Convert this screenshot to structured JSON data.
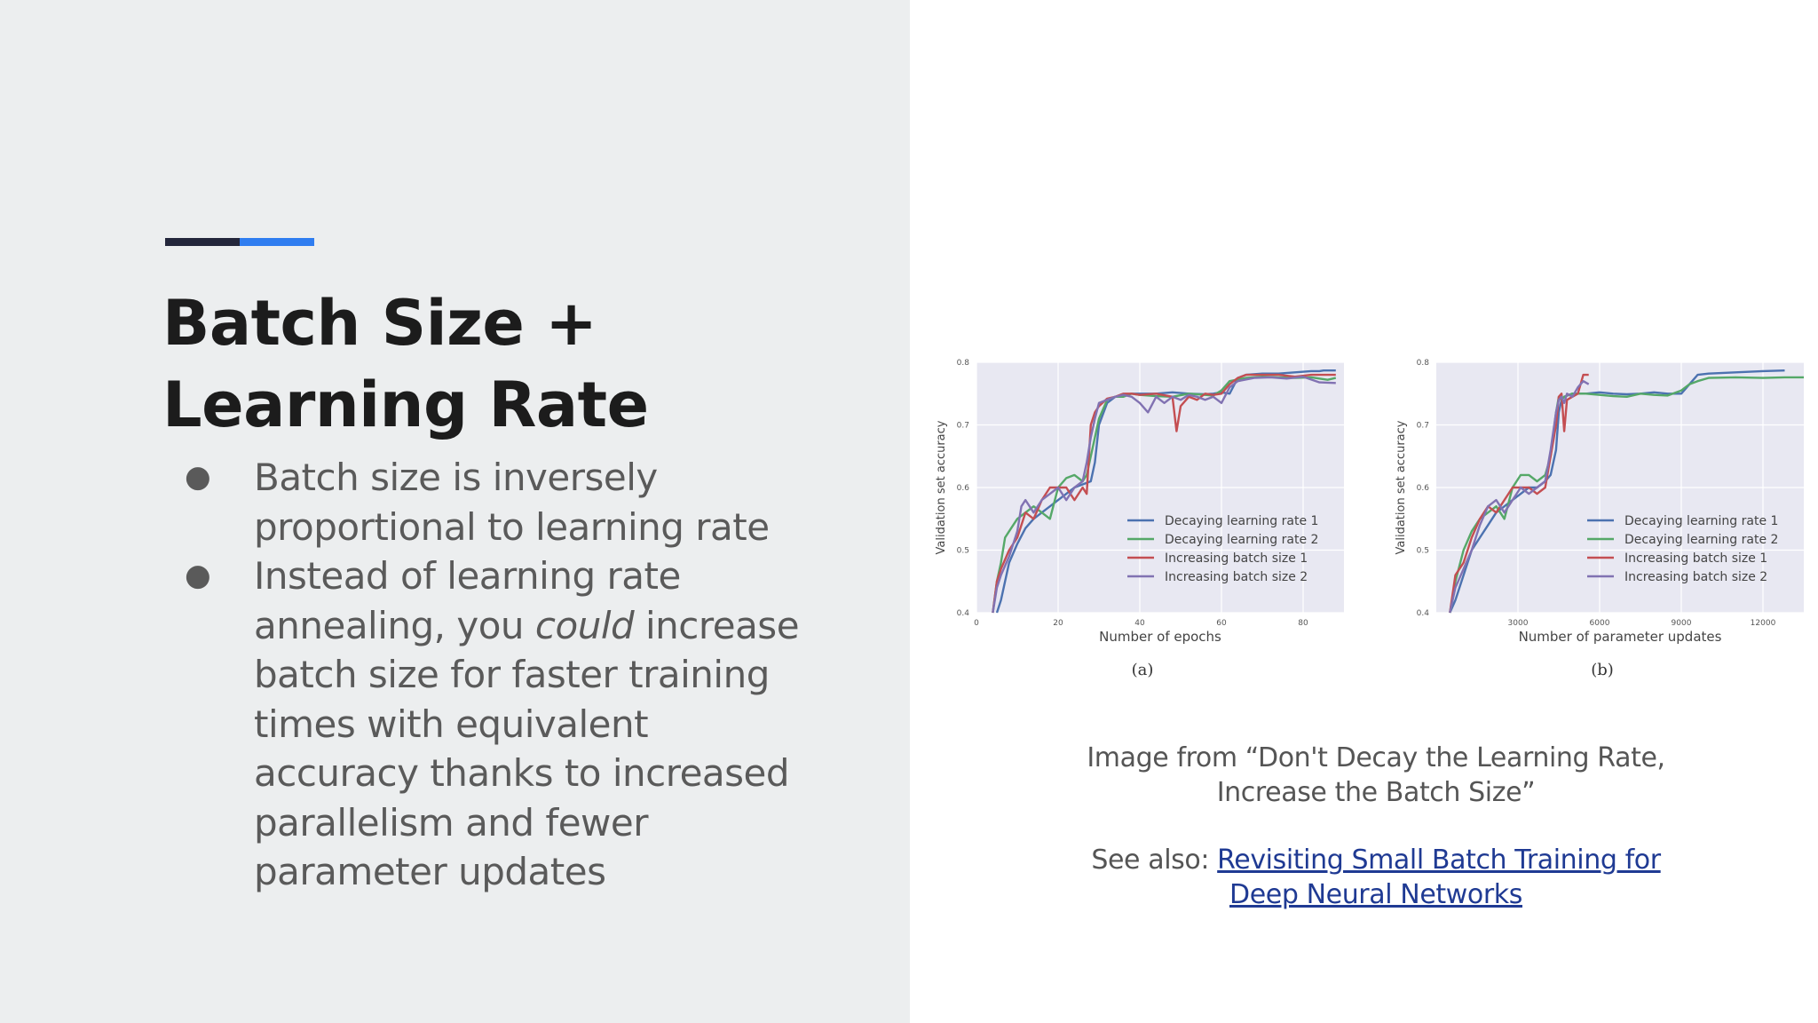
{
  "slide": {
    "accent_colors": [
      "#23263b",
      "#2f7df0"
    ],
    "title_line1": "Batch Size +",
    "title_line2": "Learning Rate",
    "bullet_glyph": "●",
    "bullets": [
      {
        "line1": "Batch size is inversely",
        "line2": "proportional to learning rate"
      },
      {
        "line1": "Instead of learning rate",
        "line2_before": "annealing, you ",
        "line2_italic": "could",
        "line2_after": " increase",
        "line3": "batch size for faster training",
        "line4": "times with equivalent",
        "line5": "accuracy thanks to increased",
        "line6": "parallelism and fewer",
        "line7": "parameter updates"
      }
    ],
    "caption_line1": "Image from “Don't Decay the Learning Rate,",
    "caption_line2": "Increase the Batch Size”",
    "see_also_label": "See also: ",
    "link_line1": "Revisiting Small Batch Training for",
    "link_line2": "Deep Neural Networks"
  },
  "chart_data": [
    {
      "type": "line",
      "panel_label": "(a)",
      "xlabel": "Number of epochs",
      "ylabel": "Validation set accuracy",
      "xlim": [
        0,
        90
      ],
      "ylim": [
        0.4,
        0.8
      ],
      "xticks": [
        0,
        20,
        40,
        60,
        80
      ],
      "yticks": [
        0.4,
        0.5,
        0.6,
        0.7,
        0.8
      ],
      "grid": true,
      "legend": "lower-right",
      "series": [
        {
          "name": "Decaying learning rate 1",
          "color": "#4c72b0",
          "x": [
            5,
            6,
            7,
            8,
            10,
            12,
            14,
            16,
            18,
            20,
            22,
            24,
            26,
            28,
            29,
            30,
            32,
            34,
            36,
            38,
            40,
            44,
            48,
            52,
            56,
            58,
            60,
            62,
            64,
            66,
            70,
            74,
            78,
            82,
            84,
            85,
            86,
            88
          ],
          "y": [
            0.4,
            0.42,
            0.45,
            0.48,
            0.51,
            0.535,
            0.55,
            0.56,
            0.57,
            0.58,
            0.59,
            0.6,
            0.605,
            0.61,
            0.64,
            0.7,
            0.735,
            0.745,
            0.748,
            0.75,
            0.75,
            0.75,
            0.752,
            0.75,
            0.749,
            0.75,
            0.752,
            0.75,
            0.775,
            0.78,
            0.782,
            0.782,
            0.784,
            0.786,
            0.786,
            0.787,
            0.787,
            0.787
          ]
        },
        {
          "name": "Decaying learning rate 2",
          "color": "#55a868",
          "x": [
            4,
            5,
            6,
            7,
            8,
            10,
            12,
            14,
            16,
            18,
            20,
            22,
            24,
            26,
            27,
            28,
            30,
            32,
            34,
            36,
            38,
            40,
            44,
            48,
            52,
            56,
            58,
            60,
            62,
            66,
            70,
            74,
            78,
            82,
            84,
            86,
            88
          ],
          "y": [
            0.4,
            0.45,
            0.48,
            0.52,
            0.53,
            0.55,
            0.56,
            0.57,
            0.56,
            0.55,
            0.6,
            0.615,
            0.62,
            0.61,
            0.62,
            0.65,
            0.71,
            0.74,
            0.745,
            0.745,
            0.75,
            0.748,
            0.746,
            0.745,
            0.75,
            0.748,
            0.747,
            0.755,
            0.77,
            0.775,
            0.777,
            0.776,
            0.775,
            0.776,
            0.774,
            0.772,
            0.775
          ]
        },
        {
          "name": "Increasing batch size 1",
          "color": "#c44e52",
          "x": [
            4,
            5,
            6,
            8,
            10,
            12,
            14,
            16,
            18,
            20,
            22,
            24,
            26,
            27,
            28,
            29,
            30,
            32,
            34,
            36,
            38,
            40,
            44,
            48,
            49,
            50,
            52,
            54,
            56,
            58,
            60,
            62,
            64,
            66,
            70,
            74,
            78,
            82,
            86,
            88
          ],
          "y": [
            0.4,
            0.45,
            0.47,
            0.5,
            0.52,
            0.56,
            0.55,
            0.58,
            0.6,
            0.6,
            0.6,
            0.58,
            0.6,
            0.59,
            0.7,
            0.72,
            0.73,
            0.742,
            0.745,
            0.75,
            0.75,
            0.748,
            0.75,
            0.745,
            0.69,
            0.73,
            0.745,
            0.74,
            0.75,
            0.748,
            0.75,
            0.765,
            0.775,
            0.78,
            0.78,
            0.78,
            0.777,
            0.78,
            0.78,
            0.78
          ]
        },
        {
          "name": "Increasing batch size 2",
          "color": "#8172b2",
          "x": [
            4,
            5,
            6,
            8,
            10,
            11,
            12,
            14,
            16,
            18,
            20,
            22,
            24,
            26,
            27,
            28,
            29,
            30,
            32,
            34,
            36,
            38,
            40,
            42,
            44,
            46,
            48,
            50,
            52,
            54,
            56,
            58,
            60,
            62,
            64,
            68,
            72,
            76,
            80,
            84,
            88
          ],
          "y": [
            0.4,
            0.44,
            0.46,
            0.49,
            0.53,
            0.57,
            0.58,
            0.56,
            0.58,
            0.59,
            0.6,
            0.58,
            0.6,
            0.61,
            0.64,
            0.68,
            0.71,
            0.735,
            0.74,
            0.745,
            0.748,
            0.745,
            0.735,
            0.72,
            0.745,
            0.735,
            0.745,
            0.74,
            0.748,
            0.745,
            0.74,
            0.745,
            0.735,
            0.76,
            0.77,
            0.775,
            0.776,
            0.774,
            0.777,
            0.768,
            0.767
          ]
        }
      ]
    },
    {
      "type": "line",
      "panel_label": "(b)",
      "xlabel": "Number of parameter updates",
      "ylabel": "Validation set accuracy",
      "xlim": [
        0,
        13500
      ],
      "ylim": [
        0.4,
        0.8
      ],
      "xticks": [
        3000,
        6000,
        9000,
        12000
      ],
      "yticks": [
        0.4,
        0.5,
        0.6,
        0.7,
        0.8
      ],
      "grid": true,
      "legend": "lower-right",
      "series": [
        {
          "name": "Decaying learning rate 1",
          "color": "#4c72b0",
          "x": [
            500,
            700,
            1000,
            1300,
            1600,
            1900,
            2200,
            2500,
            2800,
            3100,
            3400,
            3700,
            4000,
            4200,
            4400,
            4500,
            4600,
            4700,
            5000,
            5500,
            6000,
            6500,
            7000,
            7500,
            8000,
            8500,
            9000,
            9300,
            9600,
            10000,
            11000,
            12000,
            12800
          ],
          "y": [
            0.4,
            0.42,
            0.46,
            0.5,
            0.52,
            0.54,
            0.56,
            0.57,
            0.58,
            0.59,
            0.6,
            0.6,
            0.61,
            0.62,
            0.66,
            0.72,
            0.74,
            0.745,
            0.75,
            0.75,
            0.752,
            0.75,
            0.749,
            0.75,
            0.752,
            0.75,
            0.75,
            0.765,
            0.78,
            0.782,
            0.784,
            0.786,
            0.787
          ]
        },
        {
          "name": "Decaying learning rate 2",
          "color": "#55a868",
          "x": [
            500,
            700,
            1000,
            1300,
            1600,
            1900,
            2200,
            2500,
            2800,
            3100,
            3400,
            3700,
            4000,
            4200,
            4400,
            4500,
            4600,
            4700,
            5000,
            5500,
            6000,
            6500,
            7000,
            7500,
            8000,
            8500,
            9000,
            9300,
            9600,
            10000,
            11000,
            12000,
            12800,
            13500
          ],
          "y": [
            0.4,
            0.45,
            0.5,
            0.53,
            0.55,
            0.56,
            0.57,
            0.55,
            0.6,
            0.62,
            0.62,
            0.61,
            0.62,
            0.65,
            0.72,
            0.745,
            0.74,
            0.745,
            0.75,
            0.75,
            0.748,
            0.746,
            0.745,
            0.75,
            0.748,
            0.747,
            0.755,
            0.765,
            0.77,
            0.775,
            0.776,
            0.775,
            0.776,
            0.776
          ]
        },
        {
          "name": "Increasing batch size 1",
          "color": "#c44e52",
          "x": [
            500,
            700,
            1000,
            1300,
            1600,
            1900,
            2200,
            2500,
            2800,
            3100,
            3400,
            3700,
            4000,
            4200,
            4400,
            4500,
            4600,
            4700,
            4800,
            5000,
            5200,
            5400,
            5600
          ],
          "y": [
            0.4,
            0.46,
            0.48,
            0.52,
            0.55,
            0.57,
            0.56,
            0.58,
            0.6,
            0.6,
            0.6,
            0.59,
            0.6,
            0.65,
            0.7,
            0.745,
            0.75,
            0.69,
            0.74,
            0.745,
            0.75,
            0.78,
            0.78
          ]
        },
        {
          "name": "Increasing batch size 2",
          "color": "#8172b2",
          "x": [
            500,
            700,
            1000,
            1300,
            1600,
            1900,
            2200,
            2500,
            2800,
            3100,
            3400,
            3700,
            4000,
            4200,
            4400,
            4500,
            4600,
            4700,
            4800,
            5000,
            5200,
            5400,
            5600
          ],
          "y": [
            0.4,
            0.44,
            0.47,
            0.5,
            0.54,
            0.57,
            0.58,
            0.56,
            0.58,
            0.6,
            0.59,
            0.6,
            0.61,
            0.66,
            0.72,
            0.74,
            0.745,
            0.735,
            0.75,
            0.745,
            0.76,
            0.77,
            0.765
          ]
        }
      ]
    }
  ]
}
